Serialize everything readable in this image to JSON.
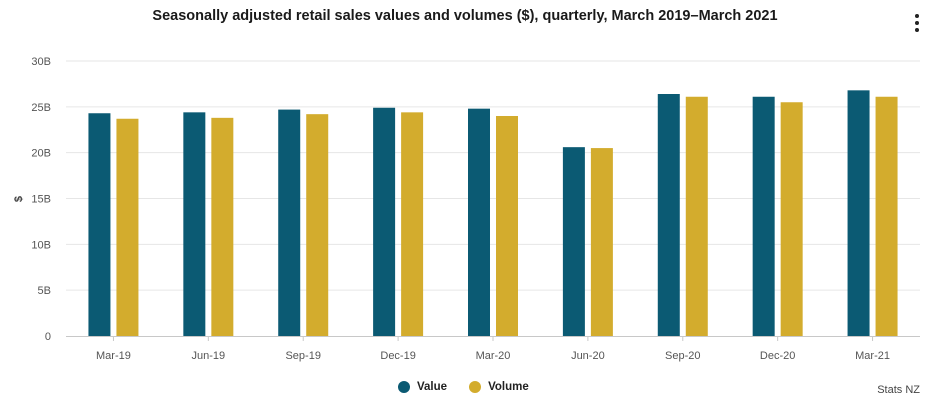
{
  "chart_data": {
    "type": "bar",
    "title": "Seasonally adjusted retail sales values and volumes ($), quarterly, March 2019–March 2021",
    "xlabel": "",
    "ylabel": "$",
    "ylim": [
      0,
      30
    ],
    "yticks": [
      {
        "value": 0,
        "label": "0"
      },
      {
        "value": 5,
        "label": "5B"
      },
      {
        "value": 10,
        "label": "10B"
      },
      {
        "value": 15,
        "label": "15B"
      },
      {
        "value": 20,
        "label": "20B"
      },
      {
        "value": 25,
        "label": "25B"
      },
      {
        "value": 30,
        "label": "30B"
      }
    ],
    "categories": [
      "Mar-19",
      "Jun-19",
      "Sep-19",
      "Dec-19",
      "Mar-20",
      "Jun-20",
      "Sep-20",
      "Dec-20",
      "Mar-21"
    ],
    "series": [
      {
        "name": "Value",
        "color": "#0b5a73",
        "values": [
          24.3,
          24.4,
          24.7,
          24.9,
          24.8,
          20.6,
          26.4,
          26.1,
          26.8
        ]
      },
      {
        "name": "Volume",
        "color": "#d3ac2d",
        "values": [
          23.7,
          23.8,
          24.2,
          24.4,
          24.0,
          20.5,
          26.1,
          25.5,
          26.1
        ]
      }
    ],
    "legend_position": "bottom-center",
    "grid": true
  },
  "source": "Stats NZ",
  "menu_icon": "more-vertical-icon"
}
